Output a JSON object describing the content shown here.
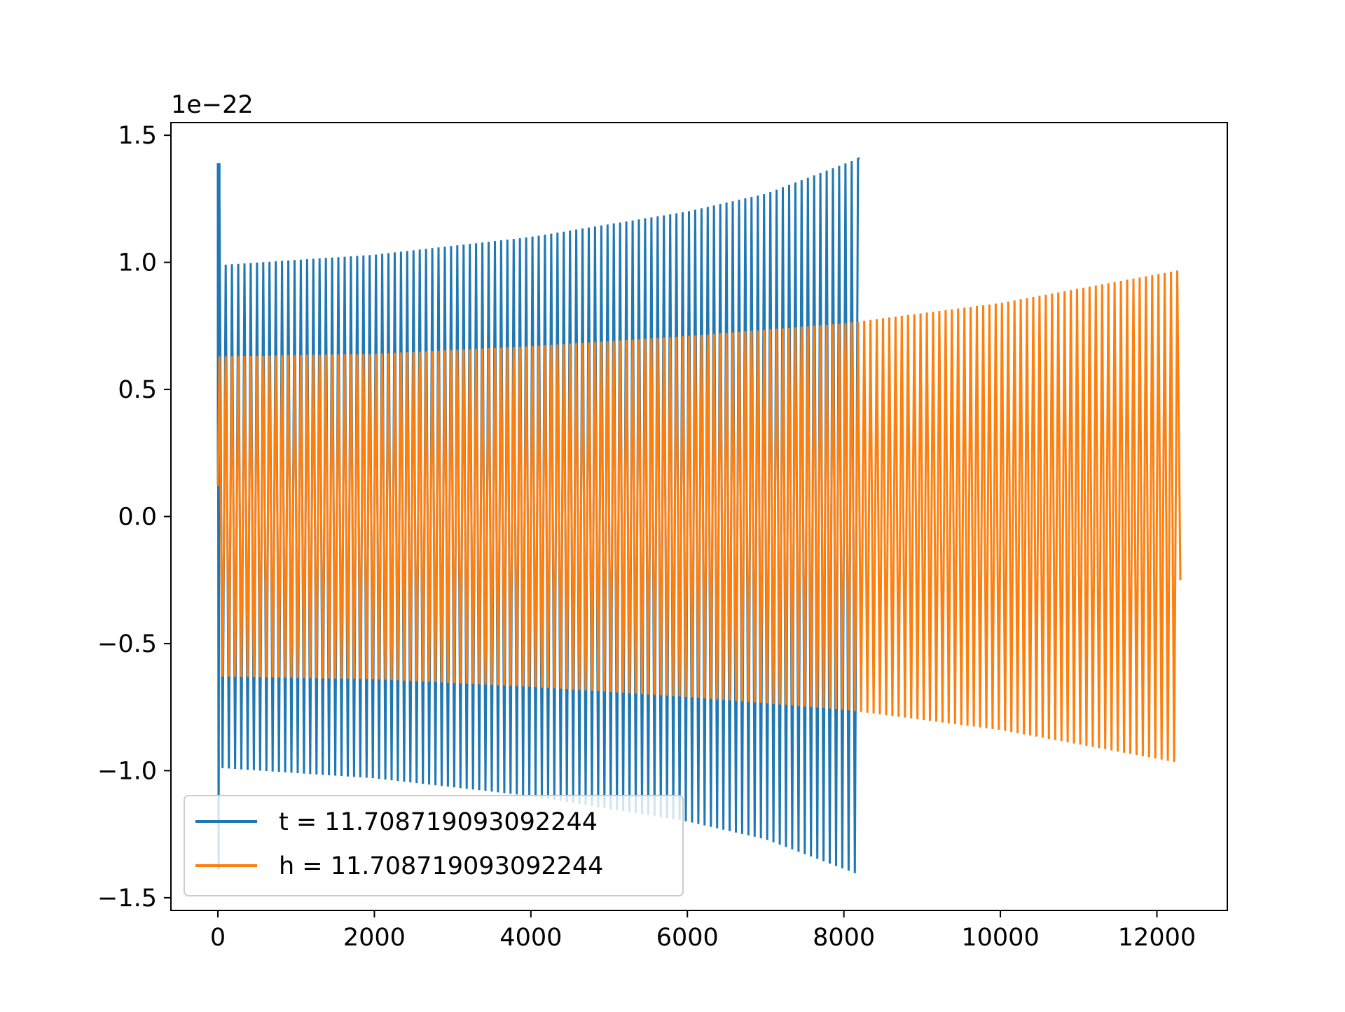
{
  "chart_data": {
    "type": "line",
    "title": "",
    "xlabel": "",
    "ylabel": "",
    "y_offset_text": "1e−22",
    "xlim": [
      -600,
      12900
    ],
    "ylim": [
      -1.55,
      1.55
    ],
    "x_ticks": [
      0,
      2000,
      4000,
      6000,
      8000,
      10000,
      12000
    ],
    "x_tick_labels": [
      "0",
      "2000",
      "4000",
      "6000",
      "8000",
      "10000",
      "12000"
    ],
    "y_ticks": [
      -1.5,
      -1.0,
      -0.5,
      0.0,
      0.5,
      1.0,
      1.5
    ],
    "y_tick_labels": [
      "−1.5",
      "−1.0",
      "−0.5",
      "0.0",
      "0.5",
      "1.0",
      "1.5"
    ],
    "grid": false,
    "legend_position": "lower-left",
    "series": [
      {
        "name": "t = 11.708719093092244",
        "color": "#1f77b4",
        "x_range": [
          0,
          8200
        ],
        "envelope_x": [
          0,
          60,
          2000,
          4000,
          6000,
          7000,
          8200
        ],
        "envelope_y": [
          1.39,
          0.99,
          1.03,
          1.1,
          1.2,
          1.27,
          1.41
        ],
        "end_value": 1.41
      },
      {
        "name": "h = 11.708719093092244",
        "color": "#ff7f0e",
        "x_range": [
          0,
          12300
        ],
        "envelope_x": [
          0,
          2000,
          4000,
          6000,
          8000,
          10000,
          12300
        ],
        "envelope_y": [
          0.63,
          0.64,
          0.67,
          0.71,
          0.76,
          0.84,
          0.97
        ],
        "end_value": -0.25
      }
    ]
  }
}
